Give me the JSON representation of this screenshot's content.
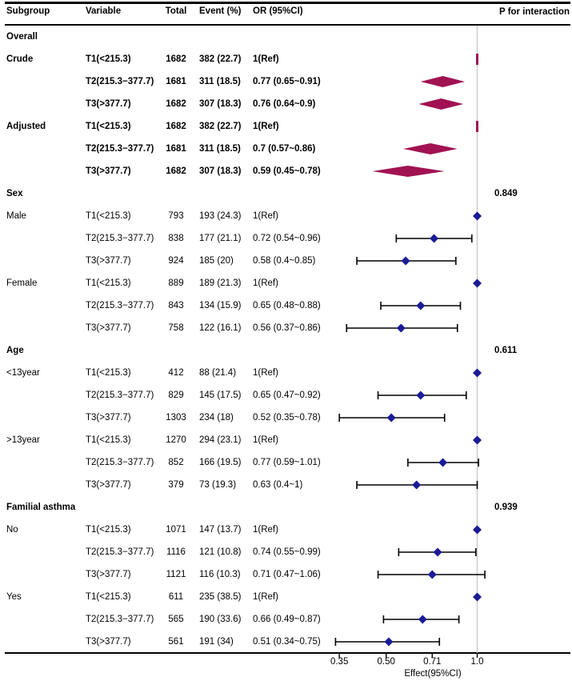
{
  "header": {
    "subgroup": "Subgroup",
    "variable": "Variable",
    "total": "Total",
    "event": "Event (%)",
    "or": "OR (95%CI)",
    "p": "P for interaction"
  },
  "colors": {
    "summary_diamond": "#a11253",
    "point_diamond": "#1b1b96",
    "error_bar": "#000000",
    "ref_line": "#c9c9c9",
    "axis": "#000000"
  },
  "chart_data": {
    "type": "scatter",
    "subtype": "forest-plot",
    "xlabel": "Effect(95%CI)",
    "xscale": "log",
    "xticks": [
      0.35,
      0.5,
      0.71,
      1.0
    ],
    "xtick_labels": [
      "0.35",
      "0.50",
      "0.71",
      "1.0"
    ],
    "xlim": [
      0.3,
      1.35
    ],
    "ref_line": 1.0,
    "rows": [
      {
        "kind": "section",
        "label": "Overall",
        "p": ""
      },
      {
        "kind": "data",
        "bold": true,
        "subgroup": "Crude",
        "variable": "T1(<215.3)",
        "total": "1682",
        "event": "382 (22.7)",
        "or_text": "1(Ref)",
        "marker": "summary-ref",
        "or": 1.0
      },
      {
        "kind": "data",
        "bold": true,
        "subgroup": "",
        "variable": "T2(215.3−377.7)",
        "total": "1681",
        "event": "311 (18.5)",
        "or_text": "0.77 (0.65~0.91)",
        "marker": "summary",
        "or": 0.77,
        "lo": 0.65,
        "hi": 0.91
      },
      {
        "kind": "data",
        "bold": true,
        "subgroup": "",
        "variable": "T3(>377.7)",
        "total": "1682",
        "event": "307 (18.3)",
        "or_text": "0.76 (0.64~0.9)",
        "marker": "summary",
        "or": 0.76,
        "lo": 0.64,
        "hi": 0.9
      },
      {
        "kind": "data",
        "bold": true,
        "subgroup": "Adjusted",
        "variable": "T1(<215.3)",
        "total": "1682",
        "event": "382 (22.7)",
        "or_text": "1(Ref)",
        "marker": "summary-ref",
        "or": 1.0
      },
      {
        "kind": "data",
        "bold": true,
        "subgroup": "",
        "variable": "T2(215.3−377.7)",
        "total": "1681",
        "event": "311 (18.5)",
        "or_text": "0.7 (0.57~0.86)",
        "marker": "summary",
        "or": 0.7,
        "lo": 0.57,
        "hi": 0.86
      },
      {
        "kind": "data",
        "bold": true,
        "subgroup": "",
        "variable": "T3(>377.7)",
        "total": "1682",
        "event": "307 (18.3)",
        "or_text": "0.59 (0.45~0.78)",
        "marker": "summary",
        "or": 0.59,
        "lo": 0.45,
        "hi": 0.78
      },
      {
        "kind": "section",
        "label": "Sex",
        "p": "0.849"
      },
      {
        "kind": "data",
        "bold": false,
        "subgroup": "Male",
        "variable": "T1(<215.3)",
        "total": "793",
        "event": "193 (24.3)",
        "or_text": "1(Ref)",
        "marker": "point-ref",
        "or": 1.0
      },
      {
        "kind": "data",
        "bold": false,
        "subgroup": "",
        "variable": "T2(215.3−377.7)",
        "total": "838",
        "event": "177 (21.1)",
        "or_text": "0.72 (0.54~0.96)",
        "marker": "point",
        "or": 0.72,
        "lo": 0.54,
        "hi": 0.96
      },
      {
        "kind": "data",
        "bold": false,
        "subgroup": "",
        "variable": "T3(>377.7)",
        "total": "924",
        "event": "185 (20)",
        "or_text": "0.58 (0.4~0.85)",
        "marker": "point",
        "or": 0.58,
        "lo": 0.4,
        "hi": 0.85
      },
      {
        "kind": "data",
        "bold": false,
        "subgroup": "Female",
        "variable": "T1(<215.3)",
        "total": "889",
        "event": "189 (21.3)",
        "or_text": "1(Ref)",
        "marker": "point-ref",
        "or": 1.0
      },
      {
        "kind": "data",
        "bold": false,
        "subgroup": "",
        "variable": "T2(215.3−377.7)",
        "total": "843",
        "event": "134 (15.9)",
        "or_text": "0.65 (0.48~0.88)",
        "marker": "point",
        "or": 0.65,
        "lo": 0.48,
        "hi": 0.88
      },
      {
        "kind": "data",
        "bold": false,
        "subgroup": "",
        "variable": "T3(>377.7)",
        "total": "758",
        "event": "122 (16.1)",
        "or_text": "0.56 (0.37~0.86)",
        "marker": "point",
        "or": 0.56,
        "lo": 0.37,
        "hi": 0.86
      },
      {
        "kind": "section",
        "label": "Age",
        "p": "0.611"
      },
      {
        "kind": "data",
        "bold": false,
        "subgroup": "<13year",
        "variable": "T1(<215.3)",
        "total": "412",
        "event": "88 (21.4)",
        "or_text": "1(Ref)",
        "marker": "point-ref",
        "or": 1.0
      },
      {
        "kind": "data",
        "bold": false,
        "subgroup": "",
        "variable": "T2(215.3−377.7)",
        "total": "829",
        "event": "145 (17.5)",
        "or_text": "0.65 (0.47~0.92)",
        "marker": "point",
        "or": 0.65,
        "lo": 0.47,
        "hi": 0.92
      },
      {
        "kind": "data",
        "bold": false,
        "subgroup": "",
        "variable": "T3(>377.7)",
        "total": "1303",
        "event": "234 (18)",
        "or_text": "0.52 (0.35~0.78)",
        "marker": "point",
        "or": 0.52,
        "lo": 0.35,
        "hi": 0.78
      },
      {
        "kind": "data",
        "bold": false,
        "subgroup": ">13year",
        "variable": "T1(<215.3)",
        "total": "1270",
        "event": "294 (23.1)",
        "or_text": "1(Ref)",
        "marker": "point-ref",
        "or": 1.0
      },
      {
        "kind": "data",
        "bold": false,
        "subgroup": "",
        "variable": "T2(215.3−377.7)",
        "total": "852",
        "event": "166 (19.5)",
        "or_text": "0.77 (0.59~1.01)",
        "marker": "point",
        "or": 0.77,
        "lo": 0.59,
        "hi": 1.01
      },
      {
        "kind": "data",
        "bold": false,
        "subgroup": "",
        "variable": "T3(>377.7)",
        "total": "379",
        "event": "73 (19.3)",
        "or_text": "0.63 (0.4~1)",
        "marker": "point",
        "or": 0.63,
        "lo": 0.4,
        "hi": 1.0
      },
      {
        "kind": "section",
        "label": "Familial asthma",
        "p": "0.939"
      },
      {
        "kind": "data",
        "bold": false,
        "subgroup": "No",
        "variable": "T1(<215.3)",
        "total": "1071",
        "event": "147 (13.7)",
        "or_text": "1(Ref)",
        "marker": "point-ref",
        "or": 1.0
      },
      {
        "kind": "data",
        "bold": false,
        "subgroup": "",
        "variable": "T2(215.3−377.7)",
        "total": "1116",
        "event": "121 (10.8)",
        "or_text": "0.74 (0.55~0.99)",
        "marker": "point",
        "or": 0.74,
        "lo": 0.55,
        "hi": 0.99
      },
      {
        "kind": "data",
        "bold": false,
        "subgroup": "",
        "variable": "T3(>377.7)",
        "total": "1121",
        "event": "116 (10.3)",
        "or_text": "0.71 (0.47~1.06)",
        "marker": "point",
        "or": 0.71,
        "lo": 0.47,
        "hi": 1.06
      },
      {
        "kind": "data",
        "bold": false,
        "subgroup": "Yes",
        "variable": "T1(<215.3)",
        "total": "611",
        "event": "235 (38.5)",
        "or_text": "1(Ref)",
        "marker": "point-ref",
        "or": 1.0
      },
      {
        "kind": "data",
        "bold": false,
        "subgroup": "",
        "variable": "T2(215.3−377.7)",
        "total": "565",
        "event": "190 (33.6)",
        "or_text": "0.66 (0.49~0.87)",
        "marker": "point",
        "or": 0.66,
        "lo": 0.49,
        "hi": 0.87
      },
      {
        "kind": "data",
        "bold": false,
        "subgroup": "",
        "variable": "T3(>377.7)",
        "total": "561",
        "event": "191 (34)",
        "or_text": "0.51 (0.34~0.75)",
        "marker": "point",
        "or": 0.51,
        "lo": 0.34,
        "hi": 0.75
      }
    ]
  }
}
